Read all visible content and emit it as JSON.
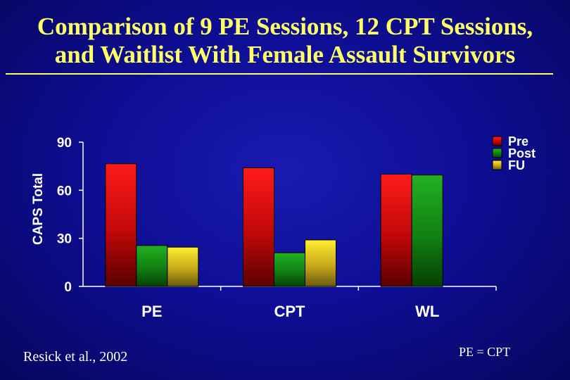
{
  "title_line1": "Comparison of 9 PE Sessions, 12 CPT Sessions,",
  "title_line2": "and Waitlist With Female Assault Survivors",
  "citation": "Resick et al., 2002",
  "note": "PE = CPT",
  "colors": {
    "background": "#0e0e96",
    "title": "#ffff66",
    "text": "#ffffff",
    "Pre": "#ff1a1a",
    "Post": "#1fa61f",
    "FU": "#f2e020"
  },
  "chart_data": {
    "type": "bar",
    "categories": [
      "PE",
      "CPT",
      "WL"
    ],
    "series": [
      {
        "name": "Pre",
        "values": [
          76.5,
          74,
          70
        ]
      },
      {
        "name": "Post",
        "values": [
          25.5,
          21,
          69.5
        ]
      },
      {
        "name": "FU",
        "values": [
          24.5,
          29,
          null
        ]
      }
    ],
    "ylabel": "CAPS Total",
    "xlabel": "",
    "ylim": [
      0,
      90
    ],
    "yticks": [
      0,
      30,
      60,
      90
    ],
    "legend": "top-right",
    "grid": false
  }
}
